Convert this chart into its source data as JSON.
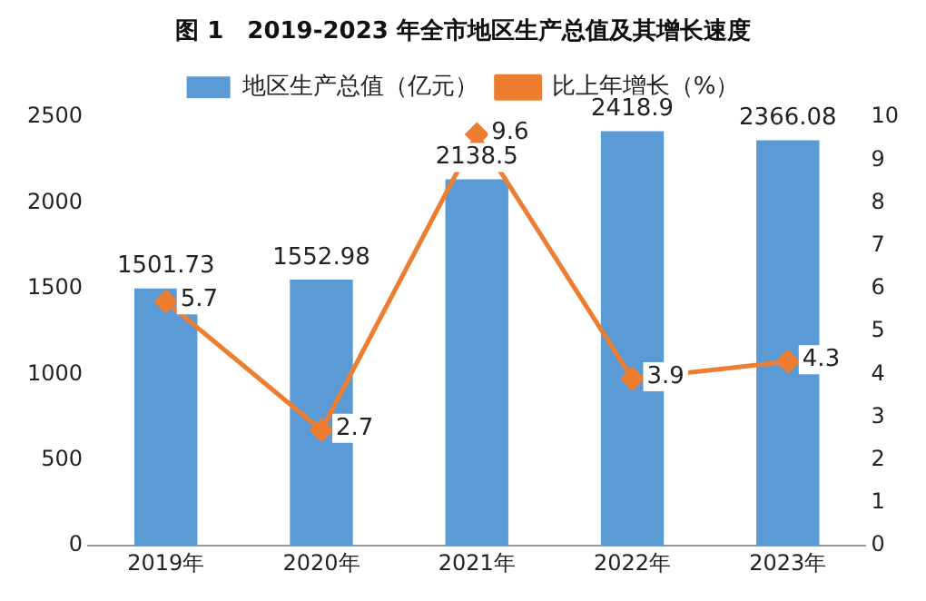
{
  "chart_data": {
    "type": "bar",
    "title": "图 1　2019-2023 年全市地区生产总值及其增长速度",
    "categories": [
      "2019年",
      "2020年",
      "2021年",
      "2022年",
      "2023年"
    ],
    "series": [
      {
        "name": "地区生产总值（亿元）",
        "color": "#5b9bd5",
        "values": [
          1501.73,
          1552.98,
          2138.5,
          2418.9,
          2366.08
        ]
      },
      {
        "name": "比上年增长（%）",
        "type": "line",
        "axis": "y2",
        "color": "#ed7d31",
        "marker": "diamond",
        "values": [
          5.7,
          2.7,
          9.6,
          3.9,
          4.3
        ]
      }
    ],
    "ylim": [
      0,
      2500
    ],
    "yticks": [
      0,
      500,
      1000,
      1500,
      2000,
      2500
    ],
    "y2lim": [
      0,
      10
    ],
    "y2ticks": [
      0,
      1,
      2,
      3,
      4,
      5,
      6,
      7,
      8,
      9,
      10
    ],
    "data_labels": true,
    "legend": "top",
    "grid": false
  }
}
